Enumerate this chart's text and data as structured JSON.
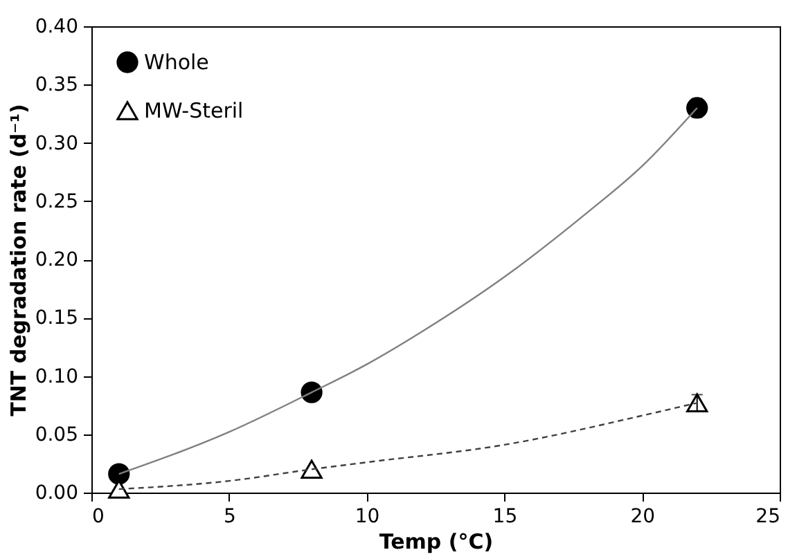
{
  "chart_data": {
    "type": "scatter",
    "xlabel": "Temp (°C)",
    "ylabel": "TNT degradation rate (d⁻¹)",
    "xlim": [
      0,
      25
    ],
    "xticks": [
      0,
      5,
      10,
      15,
      20,
      25
    ],
    "ylim": [
      0,
      0.4
    ],
    "yticks": [
      {
        "value": 0,
        "label": "0.00"
      },
      {
        "value": 0.05,
        "label": "0.05"
      },
      {
        "value": 0.1,
        "label": "0.10"
      },
      {
        "value": 0.15,
        "label": "0.15"
      },
      {
        "value": 0.2,
        "label": "0.20"
      },
      {
        "value": 0.25,
        "label": "0.25"
      },
      {
        "value": 0.3,
        "label": "0.30"
      },
      {
        "value": 0.35,
        "label": "0.35"
      },
      {
        "value": 0.4,
        "label": "0.40"
      }
    ],
    "grid": false,
    "legend": "top left",
    "series": [
      {
        "name": "Whole",
        "color": "#000000",
        "marker": "circle",
        "x": [
          1,
          8,
          22
        ],
        "values": [
          0.016,
          0.086,
          0.33
        ],
        "errors": [
          null,
          null,
          0.008
        ]
      },
      {
        "name": "MW-Steril",
        "color": "#000000",
        "marker": "triangle",
        "x": [
          1,
          8,
          22
        ],
        "values": [
          0.003,
          0.02,
          0.077
        ],
        "errors": [
          null,
          null,
          0.007
        ]
      },
      {
        "type": "line",
        "color": "#808080",
        "line_style": "solid",
        "x": [
          1,
          5,
          8,
          10,
          12,
          15,
          18,
          20,
          22
        ],
        "values": [
          0.016,
          0.052,
          0.086,
          0.11,
          0.138,
          0.185,
          0.24,
          0.28,
          0.33
        ]
      },
      {
        "type": "line",
        "color": "#404040",
        "line_style": "dashed",
        "x": [
          1,
          5,
          8,
          10,
          15,
          20,
          22
        ],
        "values": [
          0.003,
          0.01,
          0.02,
          0.026,
          0.041,
          0.066,
          0.077
        ]
      }
    ]
  }
}
